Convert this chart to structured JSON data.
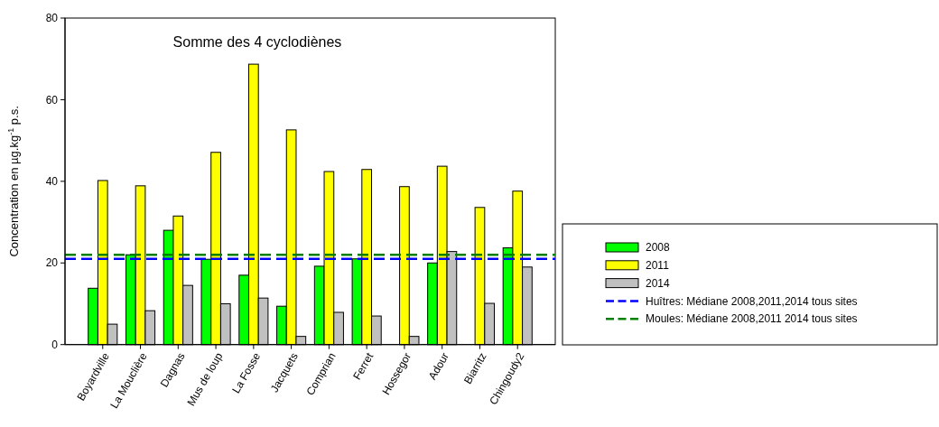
{
  "chart_data": {
    "type": "bar",
    "title": "Somme des 4 cyclodiènes",
    "ylabel": "Concentration en µg.kg$^{-1}$ p.s.",
    "categories": [
      "Boyardville",
      "La Mouclière",
      "Dagnas",
      "Mus de loup",
      "La Fosse",
      "Jacquets",
      "Comprian",
      "Ferret",
      "Hossegor",
      "Adour",
      "Biarritz",
      "Chingoudy2"
    ],
    "series": [
      {
        "name": "2008",
        "color": "#00ff00",
        "values": [
          13.8,
          22.0,
          28.0,
          20.9,
          17.0,
          9.4,
          19.2,
          21.0,
          null,
          20.0,
          null,
          23.7
        ]
      },
      {
        "name": "2011",
        "color": "#ffff00",
        "values": [
          40.2,
          38.9,
          31.5,
          47.1,
          68.7,
          52.6,
          42.4,
          42.9,
          38.7,
          43.7,
          33.6,
          37.6
        ]
      },
      {
        "name": "2014",
        "color": "#c0c0c0",
        "values": [
          5.0,
          8.3,
          14.5,
          10.0,
          11.4,
          2.0,
          7.9,
          7.0,
          2.0,
          22.8,
          10.1,
          19.0
        ]
      }
    ],
    "ref_lines": [
      {
        "axis": "y",
        "value": 21,
        "label": "Huîtres: Médiane 2008,2011,2014 tous sites",
        "color": "#0000ff",
        "line_style": "dashed"
      },
      {
        "axis": "y",
        "value": 22,
        "label": "Moules: Médiane 2008,2011 2014 tous sites",
        "color": "#008000",
        "line_style": "dashed"
      }
    ],
    "ylim": [
      0,
      80
    ],
    "yticks": [
      0,
      20,
      40,
      60,
      80
    ],
    "grid": false,
    "legend": "right"
  }
}
